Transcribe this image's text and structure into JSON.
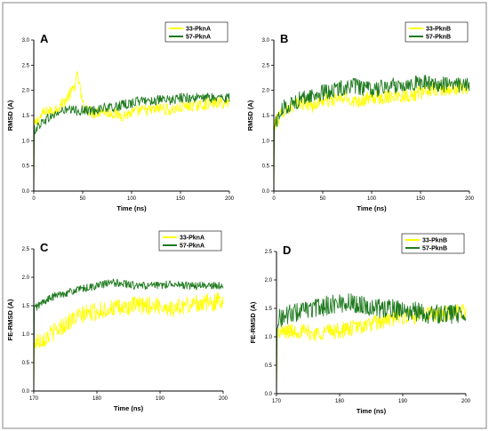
{
  "chart_data": [
    {
      "type": "line",
      "panel_label": "A",
      "xlabel": "Time (ns)",
      "ylabel": "RMSD (A)",
      "xlim": [
        0,
        200
      ],
      "ylim": [
        0,
        3.0
      ],
      "xticks": [
        0,
        50,
        100,
        150,
        200
      ],
      "yticks": [
        0.0,
        0.5,
        1.0,
        1.5,
        2.0,
        2.5,
        3.0
      ],
      "legend_position": "top-right",
      "series": [
        {
          "name": "33-PknA",
          "color": "#ffff00",
          "x": [
            0,
            10,
            20,
            30,
            40,
            45,
            50,
            60,
            70,
            80,
            90,
            100,
            110,
            120,
            130,
            140,
            150,
            160,
            170,
            180,
            190,
            200
          ],
          "y": [
            1.3,
            1.55,
            1.6,
            1.75,
            2.0,
            2.3,
            1.7,
            1.55,
            1.6,
            1.55,
            1.5,
            1.55,
            1.6,
            1.6,
            1.65,
            1.6,
            1.65,
            1.7,
            1.7,
            1.75,
            1.75,
            1.75
          ],
          "noise": 0.12,
          "initial": 0.0
        },
        {
          "name": "57-PknA",
          "color": "#1f7a1f",
          "x": [
            0,
            10,
            20,
            30,
            40,
            50,
            60,
            70,
            80,
            90,
            100,
            110,
            120,
            130,
            140,
            150,
            160,
            170,
            180,
            190,
            200
          ],
          "y": [
            1.2,
            1.4,
            1.5,
            1.6,
            1.6,
            1.6,
            1.6,
            1.65,
            1.65,
            1.7,
            1.75,
            1.8,
            1.8,
            1.8,
            1.8,
            1.85,
            1.85,
            1.85,
            1.85,
            1.85,
            1.85
          ],
          "noise": 0.1,
          "initial": 0.0
        }
      ]
    },
    {
      "type": "line",
      "panel_label": "B",
      "xlabel": "Time (ns)",
      "ylabel": "RMSD (A)",
      "xlim": [
        0,
        200
      ],
      "ylim": [
        0,
        3.0
      ],
      "xticks": [
        0,
        50,
        100,
        150,
        200
      ],
      "yticks": [
        0.0,
        0.5,
        1.0,
        1.5,
        2.0,
        2.5,
        3.0
      ],
      "legend_position": "top-right",
      "series": [
        {
          "name": "33-PknB",
          "color": "#ffff00",
          "x": [
            0,
            10,
            20,
            30,
            40,
            50,
            60,
            70,
            80,
            90,
            100,
            110,
            120,
            130,
            140,
            150,
            160,
            170,
            180,
            190,
            200
          ],
          "y": [
            1.3,
            1.6,
            1.7,
            1.75,
            1.7,
            1.8,
            1.8,
            1.85,
            1.8,
            1.8,
            1.85,
            1.85,
            1.9,
            1.9,
            1.9,
            1.95,
            2.0,
            2.0,
            2.0,
            2.05,
            2.05
          ],
          "noise": 0.14,
          "initial": 0.0
        },
        {
          "name": "57-PknB",
          "color": "#1f7a1f",
          "x": [
            0,
            10,
            20,
            30,
            40,
            50,
            60,
            70,
            80,
            90,
            100,
            110,
            120,
            130,
            140,
            150,
            160,
            170,
            180,
            190,
            200
          ],
          "y": [
            1.3,
            1.65,
            1.75,
            1.85,
            1.9,
            1.95,
            2.0,
            2.05,
            2.1,
            2.05,
            2.0,
            2.05,
            2.1,
            2.1,
            2.15,
            2.15,
            2.15,
            2.1,
            2.15,
            2.1,
            2.1
          ],
          "noise": 0.16,
          "initial": 0.0
        }
      ]
    },
    {
      "type": "line",
      "panel_label": "C",
      "xlabel": "Time (ns)",
      "ylabel": "FE-RMSD (A)",
      "xlim": [
        170,
        200
      ],
      "ylim": [
        0,
        2.5
      ],
      "xticks": [
        170,
        180,
        190,
        200
      ],
      "yticks": [
        0.0,
        0.5,
        1.0,
        1.5,
        2.0,
        2.5
      ],
      "legend_position": "top-right",
      "series": [
        {
          "name": "33-PknA",
          "color": "#ffff00",
          "x": [
            170,
            172,
            174,
            176,
            178,
            180,
            182,
            184,
            186,
            188,
            190,
            192,
            194,
            196,
            198,
            200
          ],
          "y": [
            0.85,
            0.95,
            1.1,
            1.25,
            1.35,
            1.4,
            1.45,
            1.45,
            1.5,
            1.5,
            1.5,
            1.45,
            1.5,
            1.55,
            1.55,
            1.6
          ],
          "noise": 0.16,
          "initial": 0.0
        },
        {
          "name": "57-PknA",
          "color": "#1f7a1f",
          "x": [
            170,
            172,
            174,
            176,
            178,
            180,
            182,
            184,
            186,
            188,
            190,
            192,
            194,
            196,
            198,
            200
          ],
          "y": [
            1.45,
            1.6,
            1.7,
            1.75,
            1.8,
            1.85,
            1.9,
            1.9,
            1.85,
            1.85,
            1.85,
            1.9,
            1.85,
            1.85,
            1.85,
            1.85
          ],
          "noise": 0.07,
          "initial": 0.0
        }
      ]
    },
    {
      "type": "line",
      "panel_label": "D",
      "xlabel": "Time (ns)",
      "ylabel": "FE-RMSD (A)",
      "xlim": [
        170,
        200
      ],
      "ylim": [
        0,
        2.5
      ],
      "xticks": [
        170,
        180,
        190,
        200
      ],
      "yticks": [
        0.0,
        0.5,
        1.0,
        1.5,
        2.0,
        2.5
      ],
      "legend_position": "top-right",
      "series": [
        {
          "name": "33-PknB",
          "color": "#ffff00",
          "x": [
            170,
            172,
            174,
            176,
            178,
            180,
            182,
            184,
            186,
            188,
            190,
            192,
            194,
            196,
            198,
            200
          ],
          "y": [
            1.05,
            1.1,
            1.1,
            1.05,
            1.1,
            1.1,
            1.15,
            1.2,
            1.25,
            1.3,
            1.35,
            1.35,
            1.4,
            1.4,
            1.45,
            1.45
          ],
          "noise": 0.14,
          "initial": 0.0
        },
        {
          "name": "57-PknB",
          "color": "#1f7a1f",
          "x": [
            170,
            172,
            174,
            176,
            178,
            180,
            182,
            184,
            186,
            188,
            190,
            192,
            194,
            196,
            198,
            200
          ],
          "y": [
            1.3,
            1.4,
            1.45,
            1.5,
            1.55,
            1.6,
            1.6,
            1.55,
            1.5,
            1.5,
            1.45,
            1.45,
            1.4,
            1.4,
            1.4,
            1.4
          ],
          "noise": 0.17,
          "initial": 0.0
        }
      ]
    }
  ]
}
